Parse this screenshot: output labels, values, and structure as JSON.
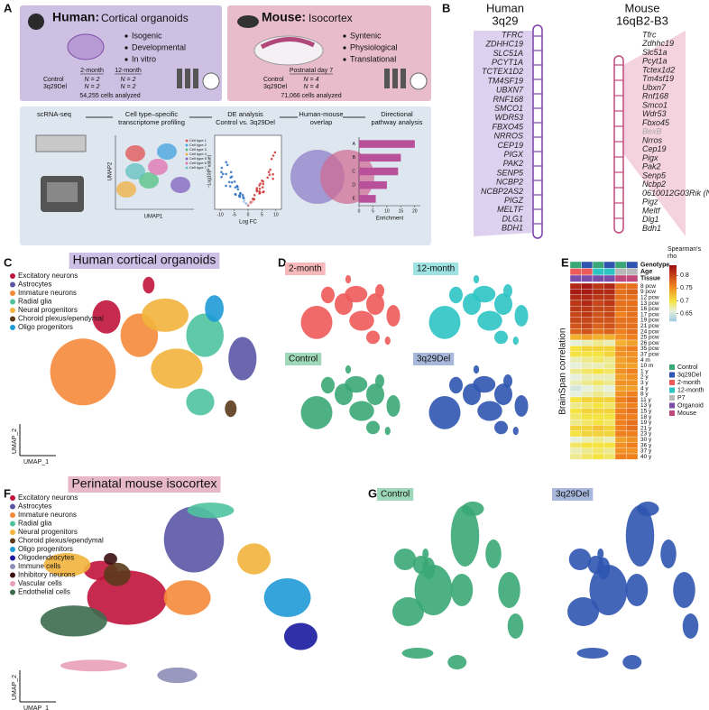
{
  "panel_labels": [
    "A",
    "B",
    "C",
    "D",
    "E",
    "F",
    "G"
  ],
  "human_box": {
    "title": "Human:",
    "subtitle": "Cortical organoids",
    "bullets": [
      "Isogenic",
      "Developmental",
      "In vitro"
    ],
    "columns": [
      "2-month",
      "12-month"
    ],
    "rows": [
      {
        "label": "Control",
        "cells": [
          "N = 2",
          "N = 2"
        ]
      },
      {
        "label": "3q29Del",
        "cells": [
          "N = 2",
          "N = 2"
        ]
      }
    ],
    "cells_note": "54,255 cells analyzed"
  },
  "mouse_box": {
    "title": "Mouse:",
    "subtitle": "Isocortex",
    "bullets": [
      "Syntenic",
      "Physiological",
      "Translational"
    ],
    "columns": [
      "Postnatal day 7"
    ],
    "rows": [
      {
        "label": "Control",
        "cells": [
          "N = 4"
        ]
      },
      {
        "label": "3q29Del",
        "cells": [
          "N = 4"
        ]
      }
    ],
    "cells_note": "71,066 cells analyzed"
  },
  "workflow": {
    "steps": [
      [
        "scRNA-seq"
      ],
      [
        "Cell type–specific",
        "transcriptome profiling"
      ],
      [
        "DE analysis",
        "Control vs. 3q29Del"
      ],
      [
        "Human-mouse",
        "overlap"
      ],
      [
        "Directional",
        "pathway analysis"
      ]
    ],
    "mini_umap": {
      "x_label": "UMAP1",
      "y_label": "UMAP2",
      "legend": [
        "Cell type 1",
        "Cell type 2",
        "Cell type 3",
        "Cell type 4",
        "Cell type 5",
        "Cell type 6",
        "Cell type 7"
      ]
    },
    "volcano": {
      "x_label": "Log FC",
      "y_label": "−Log10(P value)",
      "xlim": [
        -12,
        12
      ],
      "xticks": [
        -10,
        -5,
        0,
        5,
        10
      ]
    },
    "bar_chart": {
      "categories": [
        "A",
        "B",
        "C",
        "D",
        "E"
      ],
      "values": [
        20,
        15,
        14,
        10,
        6
      ],
      "xlim": [
        0,
        22
      ],
      "xticks": [
        0,
        5,
        10,
        15,
        20
      ],
      "x_label": "Enrichment",
      "color": "#b8509a"
    }
  },
  "chromosome_map": {
    "human_title": [
      "Human",
      "3q29"
    ],
    "mouse_title": [
      "Mouse",
      "16qB2-B3"
    ],
    "human_genes": [
      "TFRC",
      "ZDHHC19",
      "SLC51A",
      "PCYT1A",
      "TCTEX1D2",
      "TM4SF19",
      "UBXN7",
      "RNF168",
      "SMCO1",
      "WDR53",
      "FBXO45",
      "NRROS",
      "CEP19",
      "PIGX",
      "PAK2",
      "SENP5",
      "NCBP2",
      "NCBP2AS2",
      "PIGZ",
      "MELTF",
      "DLG1",
      "BDH1"
    ],
    "mouse_genes": [
      "Tfrc",
      "Zdhhc19",
      "Slc51a",
      "Pcyt1a",
      "Tctex1d2",
      "Tm4sf19",
      "Ubxn7",
      "Rnf168",
      "Smco1",
      "Wdr53",
      "Fbxo45",
      "BexB",
      "Nrros",
      "Cep19",
      "Pigx",
      "Pak2",
      "Senp5",
      "Ncbp2",
      "0610012G03Rik (Ncbp2as2)",
      "Pigz",
      "Meltf",
      "Dlg1",
      "Bdh1"
    ],
    "gene_color": "#222222",
    "muted_color": "#aaaaaa",
    "muted_mouse_genes": [
      11
    ]
  },
  "human_umap": {
    "title": "Human cortical organoids",
    "x_label": "UMAP_1",
    "y_label": "UMAP_2",
    "legend": [
      {
        "name": "Excitatory neurons",
        "color": "#c0143c"
      },
      {
        "name": "Astrocytes",
        "color": "#5b57a6"
      },
      {
        "name": "Immature neurons",
        "color": "#f58a3a"
      },
      {
        "name": "Radial glia",
        "color": "#4fc3a0"
      },
      {
        "name": "Neural progenitors",
        "color": "#f2b43c"
      },
      {
        "name": "Choroid plexus/ependymal",
        "color": "#5a3a1a"
      },
      {
        "name": "Oligo progenitors",
        "color": "#1e9ad6"
      }
    ]
  },
  "human_groups": [
    {
      "name": "2-month",
      "color": "#ee5a5a",
      "bg": "#f6b8b8"
    },
    {
      "name": "12-month",
      "color": "#2ec4c4",
      "bg": "#9fe2e2"
    },
    {
      "name": "Control",
      "color": "#3aa876",
      "bg": "#9fd8b8"
    },
    {
      "name": "3q29Del",
      "color": "#2f55b0",
      "bg": "#a8b8dc"
    }
  ],
  "mouse_umap": {
    "title": "Perinatal mouse isocortex",
    "x_label": "UMAP_1",
    "y_label": "UMAP_2",
    "legend": [
      {
        "name": "Excitatory neurons",
        "color": "#c0143c"
      },
      {
        "name": "Astrocytes",
        "color": "#5b57a6"
      },
      {
        "name": "Immature neurons",
        "color": "#f58a3a"
      },
      {
        "name": "Radial glia",
        "color": "#4fc3a0"
      },
      {
        "name": "Neural progenitors",
        "color": "#f2b43c"
      },
      {
        "name": "Choroid plexus/ependymal",
        "color": "#5a3a1a"
      },
      {
        "name": "Oligo progenitors",
        "color": "#1e9ad6"
      },
      {
        "name": "Oligodendrocytes",
        "color": "#1a1aa0"
      },
      {
        "name": "Immune cells",
        "color": "#8e8eb8"
      },
      {
        "name": "Inhibitory neurons",
        "color": "#3a1010"
      },
      {
        "name": "Vascular cells",
        "color": "#e8a0b8"
      },
      {
        "name": "Endothelial cells",
        "color": "#3d6b4e"
      }
    ]
  },
  "mouse_groups": [
    {
      "name": "Control",
      "color": "#3aa876",
      "bg": "#9fd8b8"
    },
    {
      "name": "3q29Del",
      "color": "#2f55b0",
      "bg": "#a8b8dc"
    }
  ],
  "heatmap": {
    "colorbar_title": [
      "Spearman's",
      "rho"
    ],
    "clim": [
      0.62,
      0.84
    ],
    "colorbar_ticks": [
      0.65,
      0.7,
      0.75,
      0.8
    ],
    "color_stops": [
      [
        0.62,
        "#9ec9e2"
      ],
      [
        0.66,
        "#e6f0dc"
      ],
      [
        0.7,
        "#f4e340"
      ],
      [
        0.76,
        "#f0801e"
      ],
      [
        0.84,
        "#9a0c12"
      ]
    ],
    "annotation_rows": [
      "Genotype",
      "Age",
      "Tissue"
    ],
    "column_annotations": [
      [
        0,
        2,
        5
      ],
      [
        1,
        2,
        5
      ],
      [
        0,
        3,
        5
      ],
      [
        1,
        3,
        5
      ],
      [
        0,
        4,
        6
      ],
      [
        1,
        4,
        6
      ]
    ],
    "legend": [
      {
        "name": "Control",
        "color": "#3aa876"
      },
      {
        "name": "3q29Del",
        "color": "#2f55b0"
      },
      {
        "name": "2-month",
        "color": "#ee5a5a"
      },
      {
        "name": "12-month",
        "color": "#2ec4c4"
      },
      {
        "name": "P7",
        "color": "#b8b8b8"
      },
      {
        "name": "Organoid",
        "color": "#7b4fa8"
      },
      {
        "name": "Mouse",
        "color": "#c0487a"
      }
    ],
    "y_label": "BrainSpan correlation",
    "rows": [
      "8 pcw",
      "9 pcw",
      "12 pcw",
      "13 pcw",
      "16 pcw",
      "17 pcw",
      "19 pcw",
      "21 pcw",
      "24 pcw",
      "25 pcw",
      "26 pcw",
      "35 pcw",
      "37 pcw",
      "4 m",
      "10 m",
      "1 y",
      "2 y",
      "3 y",
      "4 y",
      "8 y",
      "11 y",
      "13 y",
      "15 y",
      "18 y",
      "19 y",
      "21 y",
      "23 y",
      "30 y",
      "36 y",
      "37 y",
      "40 y"
    ],
    "values": [
      [
        0.82,
        0.83,
        0.81,
        0.82,
        0.77,
        0.77
      ],
      [
        0.83,
        0.83,
        0.82,
        0.82,
        0.77,
        0.78
      ],
      [
        0.82,
        0.82,
        0.81,
        0.81,
        0.77,
        0.77
      ],
      [
        0.81,
        0.82,
        0.8,
        0.81,
        0.77,
        0.77
      ],
      [
        0.81,
        0.81,
        0.8,
        0.8,
        0.77,
        0.77
      ],
      [
        0.8,
        0.81,
        0.79,
        0.8,
        0.76,
        0.77
      ],
      [
        0.8,
        0.8,
        0.79,
        0.79,
        0.77,
        0.77
      ],
      [
        0.79,
        0.8,
        0.78,
        0.79,
        0.77,
        0.77
      ],
      [
        0.78,
        0.79,
        0.77,
        0.78,
        0.76,
        0.77
      ],
      [
        0.73,
        0.74,
        0.73,
        0.73,
        0.75,
        0.76
      ],
      [
        0.66,
        0.67,
        0.68,
        0.67,
        0.73,
        0.74
      ],
      [
        0.7,
        0.71,
        0.71,
        0.71,
        0.75,
        0.76
      ],
      [
        0.7,
        0.7,
        0.7,
        0.71,
        0.75,
        0.75
      ],
      [
        0.67,
        0.68,
        0.69,
        0.68,
        0.74,
        0.75
      ],
      [
        0.66,
        0.67,
        0.67,
        0.68,
        0.74,
        0.74
      ],
      [
        0.68,
        0.69,
        0.7,
        0.69,
        0.75,
        0.76
      ],
      [
        0.66,
        0.67,
        0.67,
        0.67,
        0.74,
        0.75
      ],
      [
        0.67,
        0.68,
        0.69,
        0.68,
        0.75,
        0.75
      ],
      [
        0.65,
        0.66,
        0.67,
        0.66,
        0.74,
        0.74
      ],
      [
        0.66,
        0.67,
        0.68,
        0.67,
        0.75,
        0.76
      ],
      [
        0.7,
        0.71,
        0.71,
        0.71,
        0.76,
        0.77
      ],
      [
        0.68,
        0.69,
        0.7,
        0.69,
        0.75,
        0.76
      ],
      [
        0.7,
        0.71,
        0.71,
        0.71,
        0.76,
        0.77
      ],
      [
        0.69,
        0.7,
        0.7,
        0.7,
        0.76,
        0.76
      ],
      [
        0.68,
        0.69,
        0.7,
        0.69,
        0.76,
        0.77
      ],
      [
        0.71,
        0.71,
        0.72,
        0.71,
        0.76,
        0.77
      ],
      [
        0.7,
        0.71,
        0.71,
        0.71,
        0.76,
        0.76
      ],
      [
        0.66,
        0.67,
        0.68,
        0.67,
        0.74,
        0.75
      ],
      [
        0.69,
        0.7,
        0.7,
        0.7,
        0.75,
        0.76
      ],
      [
        0.67,
        0.68,
        0.69,
        0.68,
        0.75,
        0.75
      ],
      [
        0.68,
        0.69,
        0.7,
        0.69,
        0.76,
        0.76
      ]
    ]
  }
}
